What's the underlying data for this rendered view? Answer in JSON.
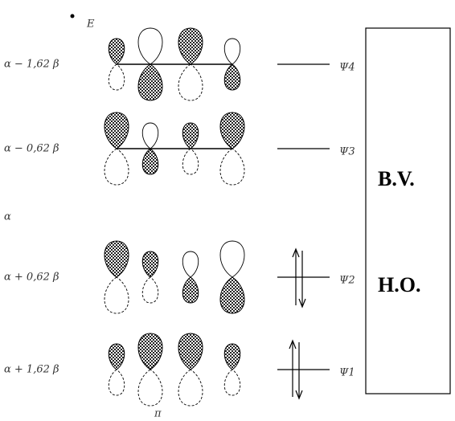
{
  "axis_label": "E",
  "levels": [
    {
      "energy": "α − 1,62 β",
      "orbital": "Ψ4"
    },
    {
      "energy": "α − 0,62 β",
      "orbital": "Ψ3"
    },
    {
      "energy": "α"
    },
    {
      "energy": "α + 0,62 β",
      "orbital": "Ψ2"
    },
    {
      "energy": "α + 1,62 β",
      "orbital": "Ψ1"
    }
  ],
  "box": {
    "upper": "B.V.",
    "lower": "H.O."
  },
  "footer": "π"
}
